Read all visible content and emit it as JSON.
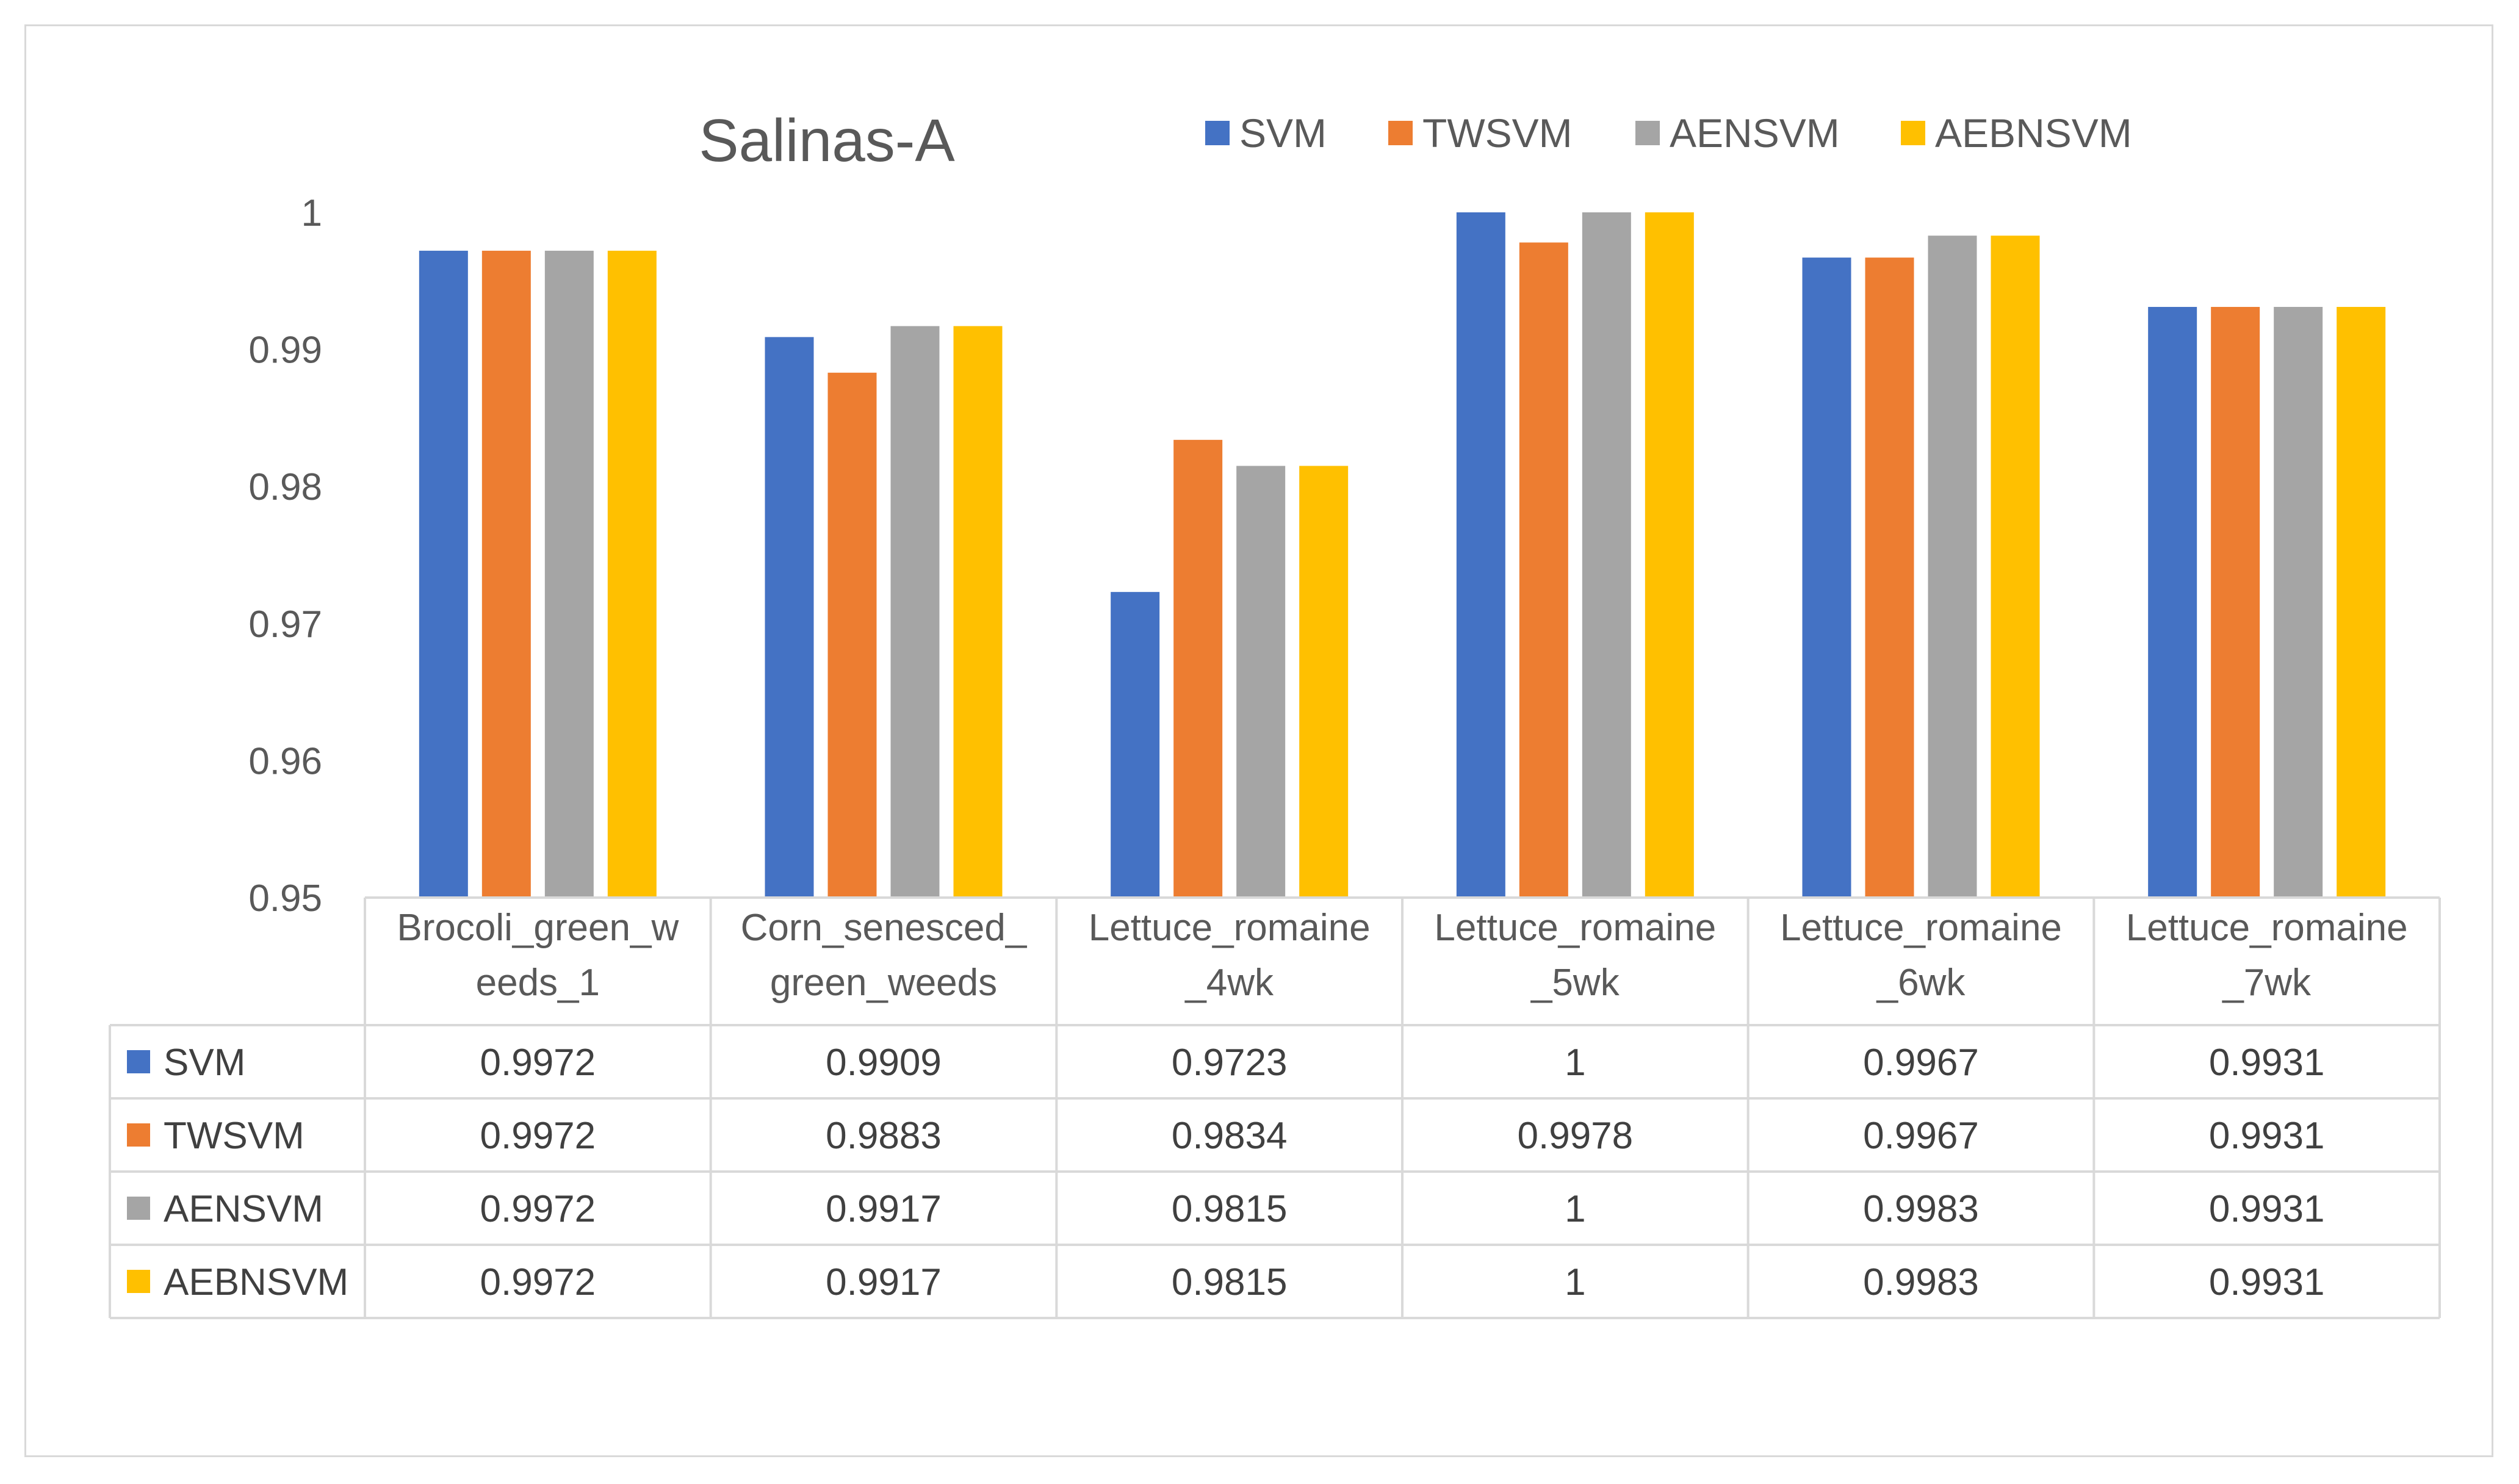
{
  "chart_data": {
    "type": "bar",
    "title": "Salinas-A",
    "categories": [
      [
        "Brocoli_green_w",
        "eeds_1"
      ],
      [
        "Corn_senesced_",
        "green_weeds"
      ],
      [
        "Lettuce_romaine",
        "_4wk"
      ],
      [
        "Lettuce_romaine",
        "_5wk"
      ],
      [
        "Lettuce_romaine",
        "_6wk"
      ],
      [
        "Lettuce_romaine",
        "_7wk"
      ]
    ],
    "series": [
      {
        "name": "SVM",
        "color": "#4472c4",
        "values": [
          0.9972,
          0.9909,
          0.9723,
          1,
          0.9967,
          0.9931
        ],
        "labels": [
          "0.9972",
          "0.9909",
          "0.9723",
          "1",
          "0.9967",
          "0.9931"
        ]
      },
      {
        "name": "TWSVM",
        "color": "#ed7d31",
        "values": [
          0.9972,
          0.9883,
          0.9834,
          0.9978,
          0.9967,
          0.9931
        ],
        "labels": [
          "0.9972",
          "0.9883",
          "0.9834",
          "0.9978",
          "0.9967",
          "0.9931"
        ]
      },
      {
        "name": "AENSVM",
        "color": "#a5a5a5",
        "values": [
          0.9972,
          0.9917,
          0.9815,
          1,
          0.9983,
          0.9931
        ],
        "labels": [
          "0.9972",
          "0.9917",
          "0.9815",
          "1",
          "0.9983",
          "0.9931"
        ]
      },
      {
        "name": "AEBNSVM",
        "color": "#ffc000",
        "values": [
          0.9972,
          0.9917,
          0.9815,
          1,
          0.9983,
          0.9931
        ],
        "labels": [
          "0.9972",
          "0.9917",
          "0.9815",
          "1",
          "0.9983",
          "0.9931"
        ]
      }
    ],
    "ylim": [
      0.95,
      1
    ],
    "yticks": [
      "0.95",
      "0.96",
      "0.97",
      "0.98",
      "0.99",
      "1"
    ],
    "legend": "top-right",
    "data_table": true,
    "grid": false
  }
}
